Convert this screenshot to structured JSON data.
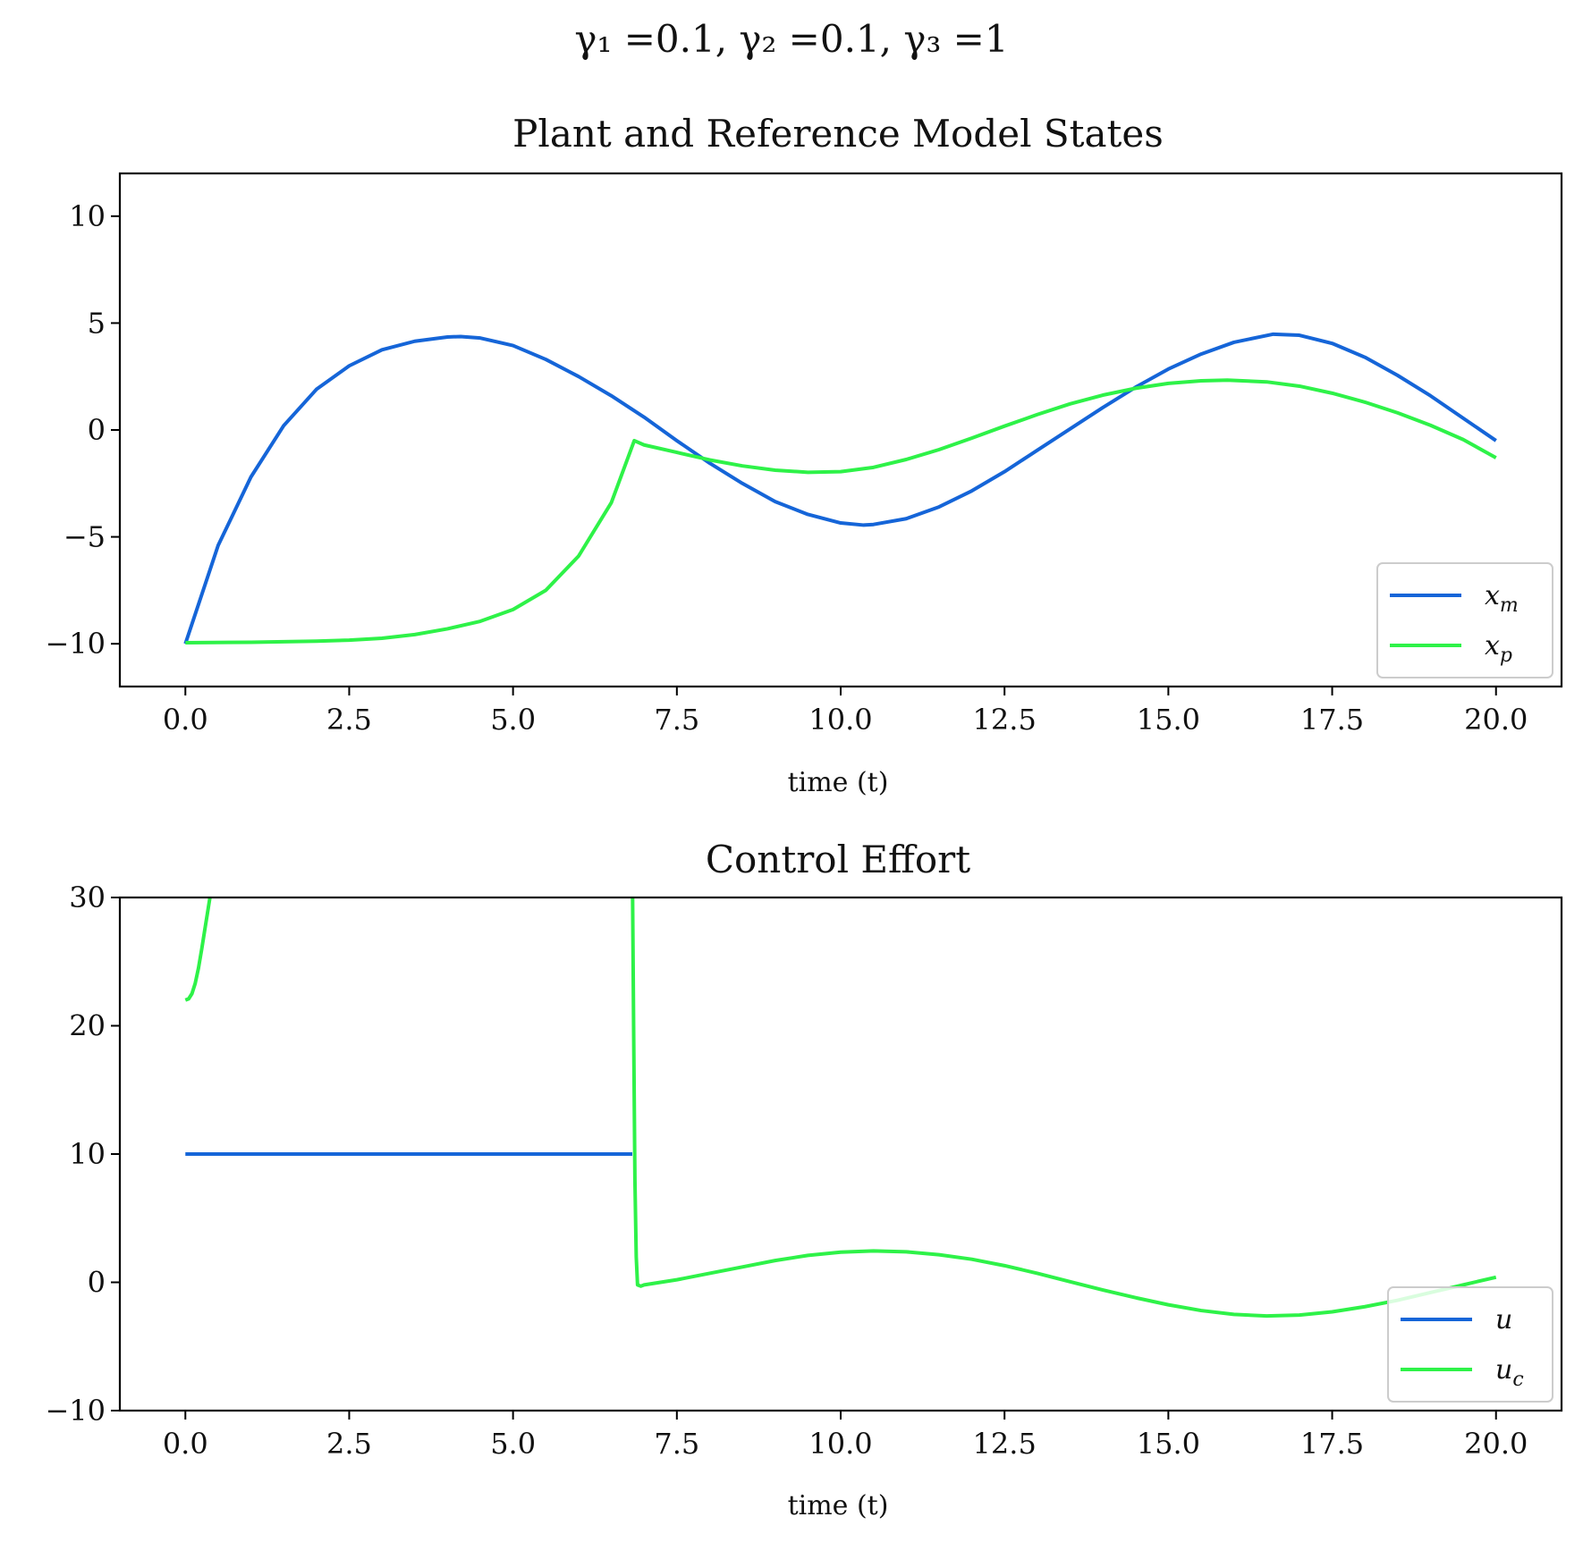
{
  "figure": {
    "suptitle": "γ₁ =0.1, γ₂ =0.1, γ₃ =1"
  },
  "colors": {
    "blue": "#1565d8",
    "green": "#2ef248"
  },
  "chart_data": [
    {
      "type": "line",
      "title": "Plant and Reference Model States",
      "xlabel": "time (t)",
      "ylabel": "",
      "xlim": [
        -1,
        21
      ],
      "ylim": [
        -12,
        12
      ],
      "xticks": [
        0,
        2.5,
        5,
        7.5,
        10,
        12.5,
        15,
        17.5,
        20
      ],
      "xtick_labels": [
        "0.0",
        "2.5",
        "5.0",
        "7.5",
        "10.0",
        "12.5",
        "15.0",
        "17.5",
        "20.0"
      ],
      "yticks": [
        -10,
        -5,
        0,
        5,
        10
      ],
      "ytick_labels": [
        "−10",
        "−5",
        "0",
        "5",
        "10"
      ],
      "legend_position": "lower-right",
      "series": [
        {
          "name": "x_m",
          "label_base": "x",
          "label_sub": "m",
          "color": "#1565d8",
          "x": [
            0,
            0.5,
            1,
            1.5,
            2,
            2.5,
            3,
            3.5,
            4,
            4.2,
            4.5,
            5,
            5.5,
            6,
            6.5,
            7,
            7.5,
            8,
            8.5,
            9,
            9.5,
            10,
            10.35,
            10.5,
            11,
            11.5,
            12,
            12.5,
            13,
            13.5,
            14,
            14.5,
            15,
            15.5,
            16,
            16.6,
            17,
            17.5,
            18,
            18.5,
            19,
            19.5,
            20
          ],
          "y": [
            -10,
            -5.4,
            -2.2,
            0.2,
            1.9,
            3.0,
            3.75,
            4.15,
            4.35,
            4.37,
            4.3,
            3.95,
            3.3,
            2.5,
            1.6,
            0.6,
            -0.5,
            -1.55,
            -2.5,
            -3.35,
            -3.95,
            -4.35,
            -4.45,
            -4.42,
            -4.15,
            -3.6,
            -2.85,
            -1.95,
            -0.95,
            0.05,
            1.05,
            2.0,
            2.85,
            3.55,
            4.1,
            4.48,
            4.43,
            4.05,
            3.4,
            2.55,
            1.6,
            0.55,
            -0.5
          ]
        },
        {
          "name": "x_p",
          "label_base": "x",
          "label_sub": "p",
          "color": "#2ef248",
          "x": [
            0,
            1,
            2,
            2.5,
            3,
            3.5,
            4,
            4.5,
            5,
            5.5,
            6,
            6.5,
            6.85,
            7,
            7.5,
            8,
            8.5,
            9,
            9.5,
            10,
            10.5,
            11,
            11.5,
            12,
            12.5,
            13,
            13.5,
            14,
            14.5,
            15,
            15.5,
            15.9,
            16.5,
            17,
            17.5,
            18,
            18.5,
            19,
            19.5,
            20
          ],
          "y": [
            -9.95,
            -9.93,
            -9.88,
            -9.83,
            -9.74,
            -9.57,
            -9.3,
            -8.95,
            -8.4,
            -7.5,
            -5.9,
            -3.4,
            -0.5,
            -0.7,
            -1.05,
            -1.4,
            -1.68,
            -1.88,
            -1.98,
            -1.95,
            -1.75,
            -1.38,
            -0.92,
            -0.38,
            0.18,
            0.72,
            1.22,
            1.63,
            1.95,
            2.18,
            2.3,
            2.33,
            2.25,
            2.05,
            1.72,
            1.3,
            0.8,
            0.22,
            -0.45,
            -1.3
          ]
        }
      ]
    },
    {
      "type": "line",
      "title": "Control Effort",
      "xlabel": "time (t)",
      "ylabel": "",
      "xlim": [
        -1,
        21
      ],
      "ylim": [
        -10,
        30
      ],
      "xticks": [
        0,
        2.5,
        5,
        7.5,
        10,
        12.5,
        15,
        17.5,
        20
      ],
      "xtick_labels": [
        "0.0",
        "2.5",
        "5.0",
        "7.5",
        "10.0",
        "12.5",
        "15.0",
        "17.5",
        "20.0"
      ],
      "yticks": [
        -10,
        0,
        10,
        20,
        30
      ],
      "ytick_labels": [
        "−10",
        "0",
        "10",
        "20",
        "30"
      ],
      "legend_position": "lower-right",
      "series": [
        {
          "name": "u",
          "label_base": "u",
          "label_sub": "",
          "color": "#1565d8",
          "x": [
            0,
            6.82
          ],
          "y": [
            10,
            10
          ]
        },
        {
          "name": "u_c",
          "label_base": "u",
          "label_sub": "c",
          "color": "#2ef248",
          "x": [
            0,
            0.05,
            0.1,
            0.15,
            0.2,
            0.25,
            0.3,
            0.35,
            0.4,
            0.42,
            0.45,
            6.82,
            6.84,
            6.86,
            6.88,
            6.9,
            6.95,
            7,
            7.5,
            8,
            8.5,
            9,
            9.5,
            10,
            10.5,
            11,
            11.5,
            12,
            12.5,
            13,
            13.5,
            14,
            14.5,
            15,
            15.5,
            16,
            16.5,
            17,
            17.5,
            18,
            18.5,
            19,
            19.5,
            20
          ],
          "y": [
            22,
            22.1,
            22.5,
            23.3,
            24.5,
            26,
            27.6,
            29.2,
            30.8,
            31.5,
            33,
            33,
            20,
            8,
            2,
            -0.2,
            -0.3,
            -0.2,
            0.2,
            0.7,
            1.2,
            1.7,
            2.1,
            2.35,
            2.45,
            2.38,
            2.15,
            1.8,
            1.3,
            0.7,
            0.05,
            -0.6,
            -1.2,
            -1.75,
            -2.2,
            -2.5,
            -2.62,
            -2.55,
            -2.3,
            -1.9,
            -1.4,
            -0.8,
            -0.2,
            0.4
          ]
        }
      ]
    }
  ]
}
